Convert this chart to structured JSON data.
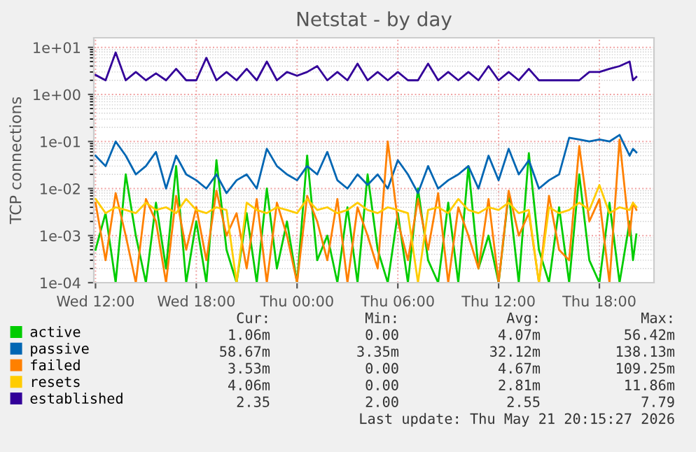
{
  "chart_data": {
    "type": "line",
    "title": "Netstat - by day",
    "ylabel": "TCP connections",
    "x": [
      "2026-05-20T12:00",
      "2026-05-20T12:36",
      "2026-05-20T13:12",
      "2026-05-20T13:48",
      "2026-05-20T14:24",
      "2026-05-20T15:00",
      "2026-05-20T15:36",
      "2026-05-20T16:12",
      "2026-05-20T16:48",
      "2026-05-20T17:24",
      "2026-05-20T18:00",
      "2026-05-20T18:36",
      "2026-05-20T19:12",
      "2026-05-20T19:48",
      "2026-05-20T20:24",
      "2026-05-20T21:00",
      "2026-05-20T21:36",
      "2026-05-20T22:12",
      "2026-05-20T22:48",
      "2026-05-20T23:24",
      "2026-05-21T00:00",
      "2026-05-21T00:36",
      "2026-05-21T01:12",
      "2026-05-21T01:48",
      "2026-05-21T02:24",
      "2026-05-21T03:00",
      "2026-05-21T03:36",
      "2026-05-21T04:12",
      "2026-05-21T04:48",
      "2026-05-21T05:24",
      "2026-05-21T06:00",
      "2026-05-21T06:36",
      "2026-05-21T07:12",
      "2026-05-21T07:48",
      "2026-05-21T08:24",
      "2026-05-21T09:00",
      "2026-05-21T09:36",
      "2026-05-21T10:12",
      "2026-05-21T10:48",
      "2026-05-21T11:24",
      "2026-05-21T12:00",
      "2026-05-21T12:36",
      "2026-05-21T13:12",
      "2026-05-21T13:48",
      "2026-05-21T14:24",
      "2026-05-21T15:00",
      "2026-05-21T15:36",
      "2026-05-21T16:12",
      "2026-05-21T16:48",
      "2026-05-21T17:24",
      "2026-05-21T18:00",
      "2026-05-21T18:36",
      "2026-05-21T19:12",
      "2026-05-21T19:48",
      "2026-05-21T20:00",
      "2026-05-21T20:12"
    ],
    "series": [
      {
        "name": "active",
        "color": "#00cc00",
        "values": [
          0.0005,
          0.003,
          0.0001,
          0.02,
          0.001,
          0.0001,
          0.005,
          0.0002,
          0.03,
          0.0001,
          0.002,
          0.0001,
          0.04,
          0.0005,
          0.0001,
          0.003,
          0.0001,
          0.01,
          0.0002,
          0.002,
          0.0001,
          0.05,
          0.0003,
          0.001,
          0.0001,
          0.004,
          0.0001,
          0.02,
          0.0005,
          0.0001,
          0.003,
          0.0001,
          0.01,
          0.0003,
          0.0001,
          0.005,
          0.0001,
          0.03,
          0.0002,
          0.001,
          0.0001,
          0.008,
          0.0001,
          0.0564,
          0.0005,
          0.0001,
          0.004,
          0.0001,
          0.02,
          0.0003,
          0.0001,
          0.005,
          0.0001,
          0.002,
          0.0003,
          0.00106
        ]
      },
      {
        "name": "passive",
        "color": "#0066b3",
        "values": [
          0.05,
          0.03,
          0.1,
          0.05,
          0.02,
          0.03,
          0.06,
          0.01,
          0.05,
          0.02,
          0.015,
          0.01,
          0.02,
          0.008,
          0.015,
          0.02,
          0.01,
          0.07,
          0.03,
          0.02,
          0.015,
          0.03,
          0.02,
          0.06,
          0.015,
          0.01,
          0.02,
          0.012,
          0.02,
          0.01,
          0.04,
          0.02,
          0.008,
          0.03,
          0.01,
          0.015,
          0.02,
          0.03,
          0.01,
          0.05,
          0.015,
          0.07,
          0.02,
          0.04,
          0.01,
          0.015,
          0.02,
          0.12,
          0.11,
          0.1,
          0.11,
          0.1,
          0.138,
          0.05,
          0.07,
          0.0587
        ]
      },
      {
        "name": "failed",
        "color": "#ff8000",
        "values": [
          0.005,
          0.0003,
          0.008,
          0.001,
          0.0001,
          0.006,
          0.002,
          0.0001,
          0.007,
          0.0005,
          0.004,
          0.0003,
          0.009,
          0.001,
          0.003,
          0.0002,
          0.006,
          0.0001,
          0.005,
          0.001,
          0.0001,
          0.007,
          0.002,
          0.0003,
          0.006,
          0.0001,
          0.004,
          0.001,
          0.0002,
          0.1,
          0.002,
          0.0003,
          0.006,
          0.0005,
          0.008,
          0.0001,
          0.004,
          0.001,
          0.0002,
          0.006,
          0.0001,
          0.009,
          0.001,
          0.003,
          0.0001,
          0.007,
          0.0005,
          0.0003,
          0.08,
          0.002,
          0.006,
          0.0001,
          0.1093,
          0.001,
          0.005,
          0.00353
        ]
      },
      {
        "name": "resets",
        "color": "#ffcc00",
        "values": [
          0.006,
          0.003,
          0.004,
          0.0035,
          0.003,
          0.005,
          0.0035,
          0.004,
          0.003,
          0.006,
          0.0035,
          0.003,
          0.004,
          0.0035,
          0.0001,
          0.005,
          0.0035,
          0.003,
          0.004,
          0.0035,
          0.003,
          0.006,
          0.0035,
          0.004,
          0.003,
          0.0035,
          0.005,
          0.0035,
          0.003,
          0.004,
          0.0035,
          0.003,
          0.0001,
          0.0035,
          0.004,
          0.003,
          0.006,
          0.0035,
          0.003,
          0.004,
          0.0035,
          0.005,
          0.003,
          0.0035,
          0.0001,
          0.004,
          0.003,
          0.0035,
          0.005,
          0.0035,
          0.01186,
          0.003,
          0.004,
          0.0035,
          0.005,
          0.00406
        ]
      },
      {
        "name": "established",
        "color": "#330099",
        "values": [
          2.6,
          2,
          7.79,
          2,
          3,
          2,
          2.8,
          2,
          3.5,
          2,
          2,
          6,
          2,
          3,
          2,
          3.5,
          2,
          5,
          2,
          3,
          2.5,
          3,
          4,
          2,
          3,
          2,
          4.5,
          2,
          3,
          2,
          3,
          2,
          2,
          4.5,
          2,
          3,
          2,
          3,
          2,
          4,
          2,
          3,
          2,
          3.5,
          2,
          2,
          2,
          2,
          2,
          3,
          3,
          3.5,
          4,
          5,
          2,
          2.35
        ]
      }
    ],
    "log": "y",
    "xlim": [
      "2026-05-20T11:54",
      "2026-05-21T21:15"
    ],
    "ylim": [
      0.0001,
      16
    ],
    "xticks": [
      {
        "value": "2026-05-20T12:00",
        "label": "Wed 12:00"
      },
      {
        "value": "2026-05-20T18:00",
        "label": "Wed 18:00"
      },
      {
        "value": "2026-05-21T00:00",
        "label": "Thu 00:00"
      },
      {
        "value": "2026-05-21T06:00",
        "label": "Thu 06:00"
      },
      {
        "value": "2026-05-21T12:00",
        "label": "Thu 12:00"
      },
      {
        "value": "2026-05-21T18:00",
        "label": "Thu 18:00"
      }
    ],
    "yticks": [
      {
        "value": 0.0001,
        "label": "1e-04"
      },
      {
        "value": 0.001,
        "label": "1e-03"
      },
      {
        "value": 0.01,
        "label": "1e-02"
      },
      {
        "value": 0.1,
        "label": "1e-01"
      },
      {
        "value": 1,
        "label": "1e+00"
      },
      {
        "value": 10,
        "label": "1e+01"
      }
    ],
    "grid": true,
    "legend": "bottom",
    "marker": "none",
    "line_style": "solid",
    "annotations": [
      "Cur:",
      "Min:",
      "Avg:",
      "Max:",
      "1.06m",
      "0.00",
      "4.07m",
      "56.42m",
      "58.67m",
      "3.35m",
      "32.12m",
      "138.13m",
      "3.53m",
      "0.00",
      "4.67m",
      "109.25m",
      "4.06m",
      "0.00",
      "2.81m",
      "11.86m",
      "2.35",
      "2.00",
      "2.55",
      "7.79",
      "Last update: Thu May 21 20:15:27 2026"
    ]
  }
}
